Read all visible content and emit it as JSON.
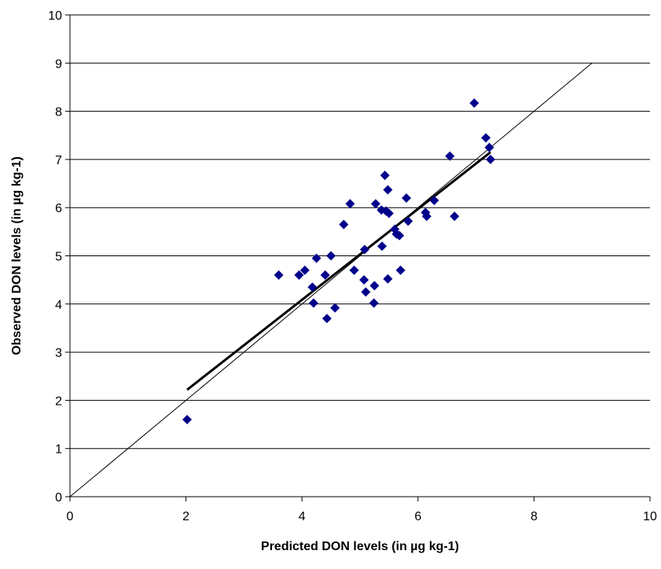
{
  "chart_data": {
    "type": "scatter",
    "title": "",
    "xlabel": "Predicted DON levels (in µg kg-1)",
    "ylabel": "Observed DON levels (in µg kg-1)",
    "xlim": [
      0,
      10
    ],
    "ylim": [
      0,
      10
    ],
    "xticks": [
      0,
      2,
      4,
      6,
      8,
      10
    ],
    "yticks": [
      0,
      1,
      2,
      3,
      4,
      5,
      6,
      7,
      8,
      9,
      10
    ],
    "grid": "horizontal",
    "legend": "none",
    "marker": "diamond",
    "marker_color": "#00008B",
    "series": [
      {
        "points": [
          [
            2.02,
            1.6
          ],
          [
            3.6,
            4.6
          ],
          [
            3.95,
            4.6
          ],
          [
            4.05,
            4.7
          ],
          [
            4.18,
            4.35
          ],
          [
            4.2,
            4.02
          ],
          [
            4.25,
            4.95
          ],
          [
            4.4,
            4.6
          ],
          [
            4.43,
            3.7
          ],
          [
            4.5,
            5.0
          ],
          [
            4.57,
            3.92
          ],
          [
            4.72,
            5.65
          ],
          [
            4.83,
            6.08
          ],
          [
            4.9,
            4.7
          ],
          [
            5.07,
            4.5
          ],
          [
            5.08,
            5.13
          ],
          [
            5.1,
            4.25
          ],
          [
            5.24,
            4.02
          ],
          [
            5.25,
            4.38
          ],
          [
            5.27,
            6.08
          ],
          [
            5.37,
            5.95
          ],
          [
            5.38,
            5.2
          ],
          [
            5.43,
            6.67
          ],
          [
            5.45,
            5.93
          ],
          [
            5.48,
            4.52
          ],
          [
            5.48,
            6.37
          ],
          [
            5.5,
            5.88
          ],
          [
            5.6,
            5.55
          ],
          [
            5.63,
            5.45
          ],
          [
            5.68,
            5.42
          ],
          [
            5.7,
            4.7
          ],
          [
            5.8,
            6.2
          ],
          [
            5.83,
            5.72
          ],
          [
            6.13,
            5.9
          ],
          [
            6.15,
            5.82
          ],
          [
            6.28,
            6.15
          ],
          [
            6.55,
            7.07
          ],
          [
            6.63,
            5.82
          ],
          [
            6.97,
            8.17
          ],
          [
            7.17,
            7.45
          ],
          [
            7.23,
            7.25
          ],
          [
            7.25,
            7.0
          ]
        ]
      }
    ],
    "lines": [
      {
        "kind": "identity",
        "x": [
          0,
          9
        ],
        "y": [
          0,
          9
        ],
        "width": "thin"
      },
      {
        "kind": "regression",
        "x": [
          2.02,
          7.25
        ],
        "y": [
          2.22,
          7.15
        ],
        "width": "thick"
      }
    ]
  }
}
